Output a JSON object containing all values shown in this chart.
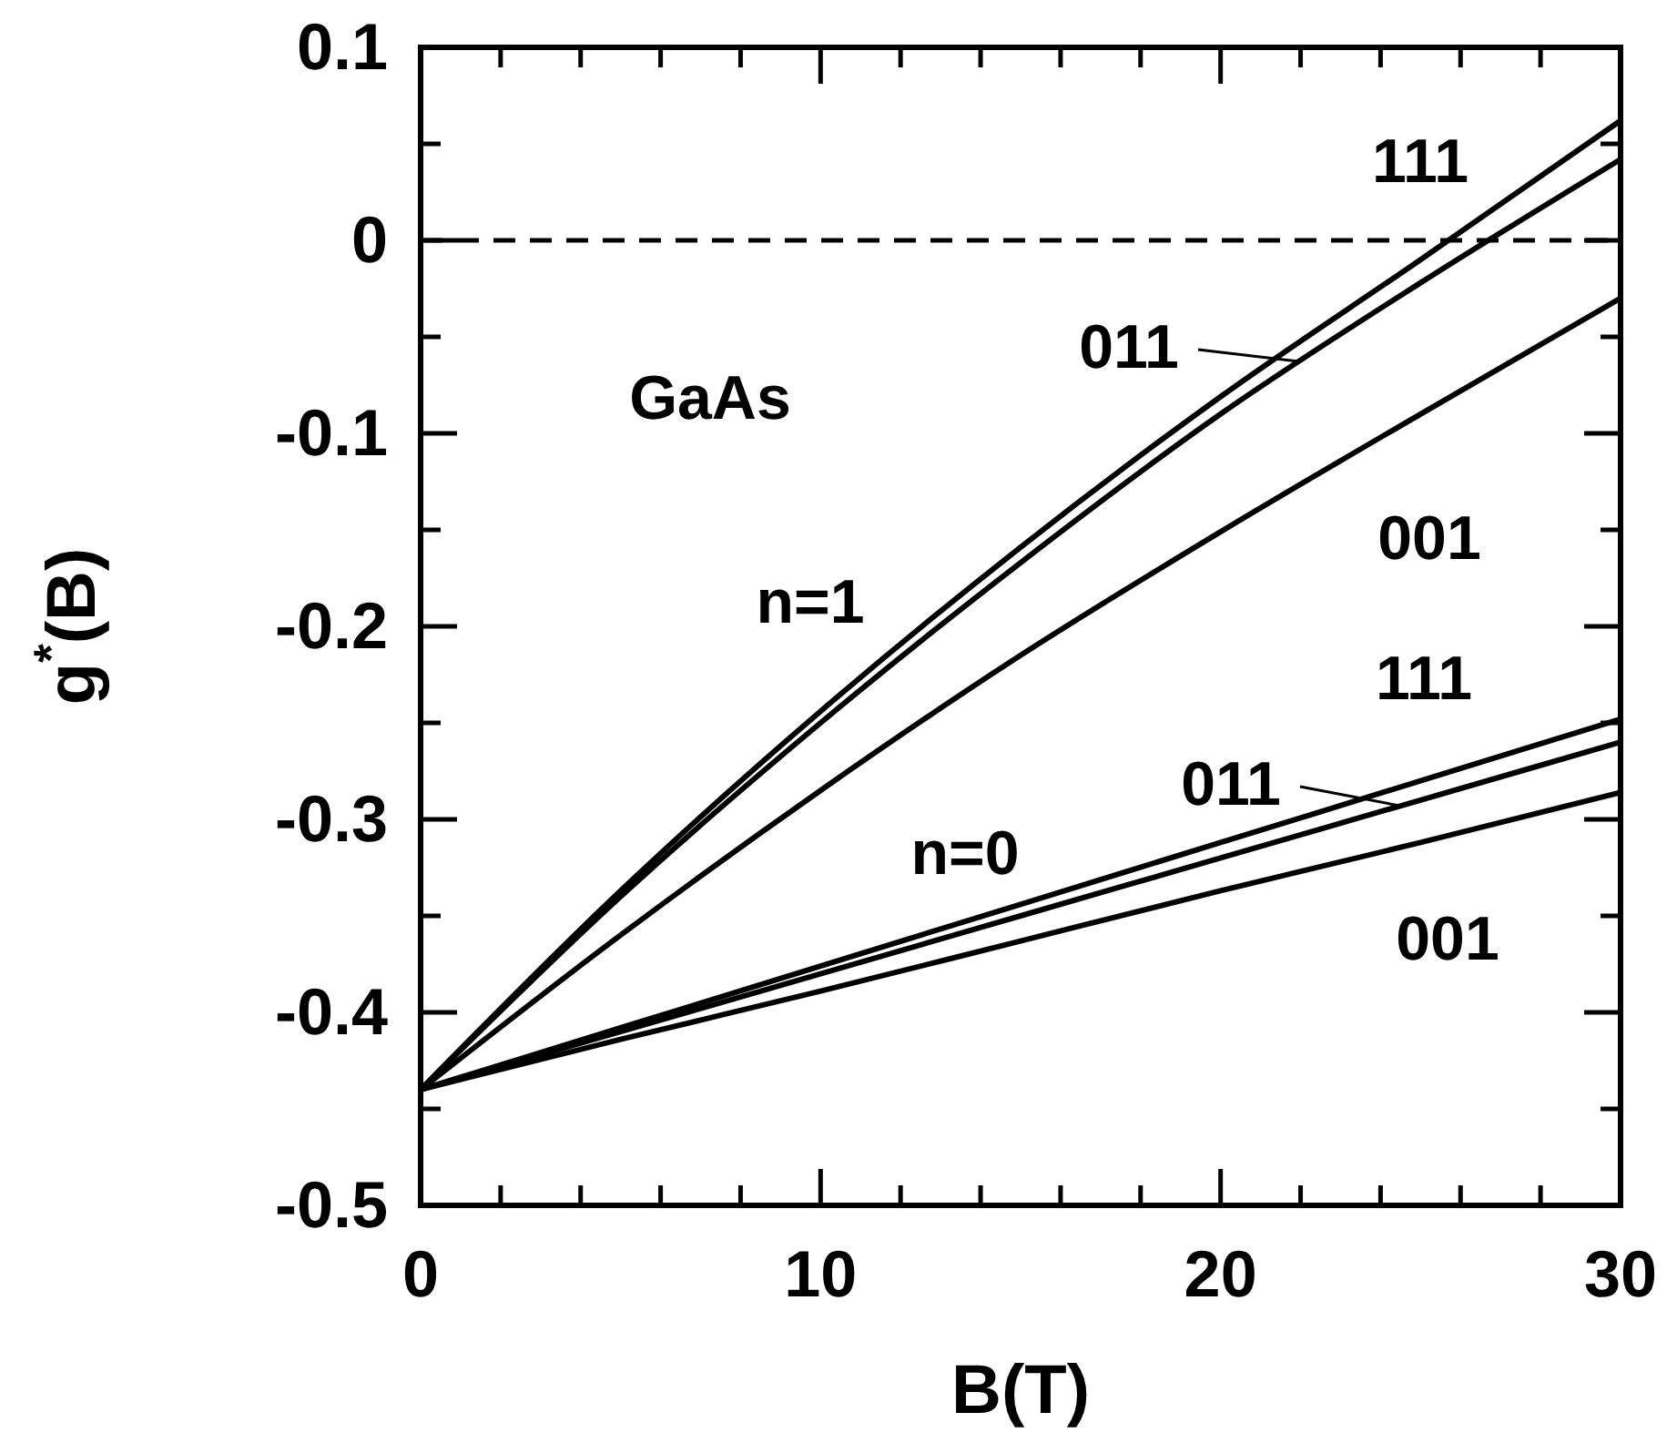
{
  "chart_data": {
    "type": "line",
    "xlabel": "B(T)",
    "ylabel": "g$^{*}$(B)",
    "x": [
      0,
      5,
      10,
      15,
      20,
      25,
      30
    ],
    "series": [
      {
        "name": "111",
        "color": "#000000",
        "values": [
          -0.44,
          -0.337,
          -0.244,
          -0.159,
          -0.081,
          -0.01,
          0.062
        ]
      },
      {
        "name": "011",
        "color": "#000000",
        "values": [
          -0.44,
          -0.34,
          -0.25,
          -0.167,
          -0.09,
          -0.022,
          0.042
        ]
      },
      {
        "name": "001",
        "color": "#000000",
        "values": [
          -0.44,
          -0.36,
          -0.285,
          -0.215,
          -0.151,
          -0.09,
          -0.03
        ]
      },
      {
        "name": "111",
        "color": "#000000",
        "values": [
          -0.44,
          -0.408,
          -0.376,
          -0.344,
          -0.312,
          -0.28,
          -0.248
        ]
      },
      {
        "name": "011",
        "color": "#000000",
        "values": [
          -0.44,
          -0.41,
          -0.38,
          -0.35,
          -0.32,
          -0.29,
          -0.26
        ]
      },
      {
        "name": "001",
        "color": "#000000",
        "values": [
          -0.44,
          -0.414,
          -0.389,
          -0.363,
          -0.337,
          -0.312,
          -0.286
        ]
      }
    ],
    "xlim": [
      0,
      30
    ],
    "xticks": [
      0,
      {
        "value": 2,
        "label": null
      },
      {
        "value": 4,
        "label": null
      },
      {
        "value": 6,
        "label": null
      },
      {
        "value": 8,
        "label": null
      },
      10,
      {
        "value": 12,
        "label": null
      },
      {
        "value": 14,
        "label": null
      },
      {
        "value": 16,
        "label": null
      },
      {
        "value": 18,
        "label": null
      },
      20,
      {
        "value": 22,
        "label": null
      },
      {
        "value": 24,
        "label": null
      },
      {
        "value": 26,
        "label": null
      },
      {
        "value": 28,
        "label": null
      },
      30
    ],
    "ylim": [
      -0.5,
      0.1
    ],
    "yticks": [
      -0.5,
      {
        "value": -0.45,
        "label": null
      },
      -0.4,
      {
        "value": -0.35,
        "label": null
      },
      -0.3,
      {
        "value": -0.25,
        "label": null
      },
      -0.2,
      {
        "value": -0.15,
        "label": null
      },
      -0.1,
      {
        "value": -0.05,
        "label": null
      },
      0,
      {
        "value": 0.05,
        "label": null
      },
      0.1
    ],
    "ref_lines": [
      {
        "axis": "y",
        "value": 0,
        "line_style": "dashed",
        "color": "#000000"
      }
    ],
    "annotations": [
      "GaAs",
      "n=1",
      "n=0"
    ],
    "grid": false,
    "legend": "right",
    "marker": "none",
    "line_style": "solid"
  }
}
